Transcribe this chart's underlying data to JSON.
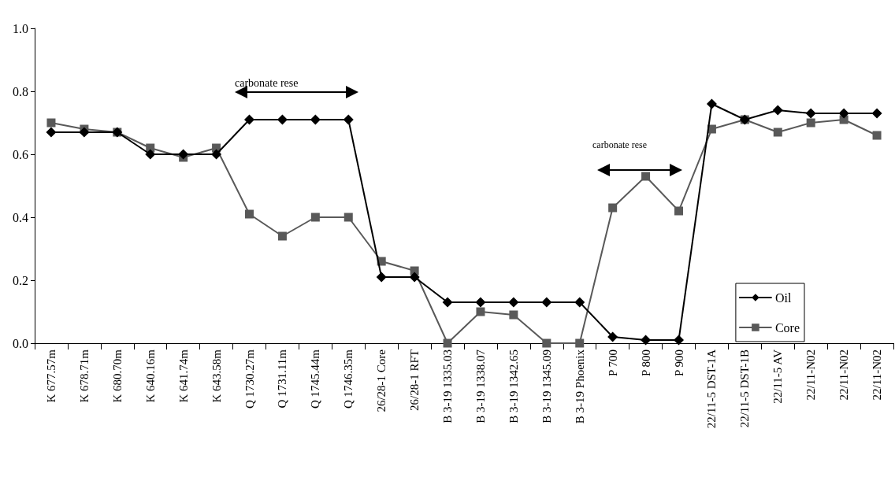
{
  "chart_data": {
    "type": "line",
    "categories": [
      "K 677.57m",
      "K 678.71m",
      "K 680.70m",
      "K 640.16m",
      "K 641.74m",
      "K 643.58m",
      "Q 1730.27m",
      "Q 1731.11m",
      "Q 1745.44m",
      "Q 1746.35m",
      "26/28-1 Core",
      "26/28-1 RFT",
      "B 3-19 1335.03",
      "B 3-19 1338.07",
      "B 3-19 1342.65",
      "B 3-19 1345.09",
      "B 3-19 Phoenix",
      "P 700",
      "P 800",
      "P 900",
      "22/11-5 DST-1A",
      "22/11-5 DST-1B",
      "22/11-5 AV",
      "22/11-N02",
      "22/11-N02",
      "22/11-N02"
    ],
    "series": [
      {
        "name": "Oil",
        "color": "#000000",
        "marker": "diamond",
        "values": [
          0.67,
          0.67,
          0.67,
          0.6,
          0.6,
          0.6,
          0.71,
          0.71,
          0.71,
          0.71,
          0.21,
          0.21,
          0.13,
          0.13,
          0.13,
          0.13,
          0.13,
          0.02,
          0.01,
          0.01,
          0.76,
          0.71,
          0.74,
          0.73,
          0.73,
          0.73
        ]
      },
      {
        "name": "Core",
        "color": "#595959",
        "marker": "square",
        "values": [
          0.7,
          0.68,
          0.67,
          0.62,
          0.59,
          0.62,
          0.41,
          0.34,
          0.4,
          0.4,
          0.26,
          0.23,
          0.0,
          0.1,
          0.09,
          0.0,
          0.0,
          0.43,
          0.53,
          0.42,
          0.68,
          0.71,
          0.67,
          0.7,
          0.71,
          0.66
        ]
      }
    ],
    "ylim": [
      0,
      1
    ],
    "yticks": [
      {
        "value": 0,
        "label": "0.0"
      },
      {
        "value": 0.2,
        "label": "0.2"
      },
      {
        "value": 0.4,
        "label": "0.4"
      },
      {
        "value": 0.6,
        "label": "0.6"
      },
      {
        "value": 0.8,
        "label": "0.8"
      },
      {
        "value": 1,
        "label": "1.0"
      }
    ],
    "grid": false,
    "legend": "right",
    "line_style": "solid",
    "annotations": [
      "carbonate rese",
      "carbonate rese"
    ]
  }
}
